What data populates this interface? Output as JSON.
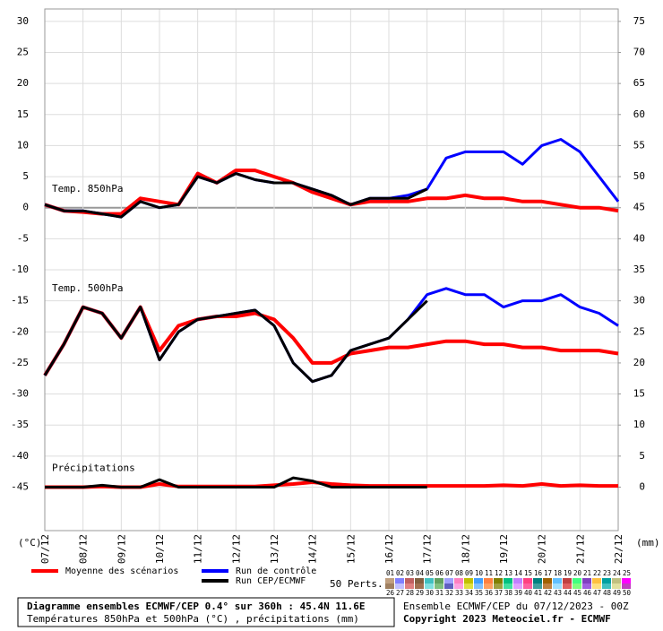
{
  "chart_data": {
    "type": "line",
    "annotations": [
      "Temp. 850hPa",
      "Temp. 500hPa",
      "Précipitations"
    ],
    "ylabel": "(°C)",
    "y2label": "(mm)",
    "x": [
      0,
      12,
      24,
      36,
      48,
      60,
      72,
      84,
      96,
      108,
      120,
      132,
      144,
      156,
      168,
      180,
      192,
      204,
      216,
      228,
      240,
      252,
      264,
      276,
      288,
      300,
      312,
      324,
      336,
      348,
      360
    ],
    "xlim": [
      0,
      360
    ],
    "xticks": [
      {
        "value": 0,
        "label": "07/12"
      },
      {
        "value": 24,
        "label": "08/12"
      },
      {
        "value": 48,
        "label": "09/12"
      },
      {
        "value": 72,
        "label": "10/12"
      },
      {
        "value": 96,
        "label": "11/12"
      },
      {
        "value": 120,
        "label": "12/12"
      },
      {
        "value": 144,
        "label": "13/12"
      },
      {
        "value": 168,
        "label": "14/12"
      },
      {
        "value": 192,
        "label": "15/12"
      },
      {
        "value": 216,
        "label": "16/12"
      },
      {
        "value": 240,
        "label": "17/12"
      },
      {
        "value": 264,
        "label": "18/12"
      },
      {
        "value": 288,
        "label": "19/12"
      },
      {
        "value": 312,
        "label": "20/12"
      },
      {
        "value": 336,
        "label": "21/12"
      },
      {
        "value": 360,
        "label": "22/12"
      }
    ],
    "ylim": [
      -52,
      32
    ],
    "yticks": [
      30,
      25,
      20,
      15,
      10,
      5,
      0,
      -5,
      -10,
      -15,
      -20,
      -25,
      -30,
      -35,
      -40,
      -45
    ],
    "y2lim": [
      -7,
      77
    ],
    "y2ticks": [
      75,
      70,
      65,
      60,
      55,
      50,
      45,
      40,
      35,
      30,
      25,
      20,
      15,
      10,
      5,
      0
    ],
    "grid": true,
    "series": [
      {
        "name": "Moyenne des scénarios",
        "color": "#ff0000",
        "width": 4,
        "values": [
          0.5,
          -0.5,
          -0.7,
          -1,
          -1,
          1.5,
          1,
          0.5,
          5.5,
          4,
          6,
          6,
          5,
          4,
          2.5,
          1.5,
          0.5,
          1,
          1,
          1,
          1.5,
          1.5,
          2,
          1.5,
          1.5,
          1,
          1,
          0.5,
          0,
          0,
          -0.5
        ]
      },
      {
        "name": "Run de contrôle",
        "color": "#0000ff",
        "width": 3,
        "values": [
          0.5,
          -0.5,
          -0.5,
          -1,
          -1.5,
          1,
          0,
          0.5,
          5,
          4,
          5.5,
          4.5,
          4,
          4,
          3,
          2,
          0.5,
          1.5,
          1.5,
          2,
          3,
          8,
          9,
          9,
          9,
          7,
          10,
          11,
          9,
          5,
          1
        ]
      },
      {
        "name": "Run CEP/ECMWF",
        "color": "#000000",
        "width": 3,
        "values": [
          0.5,
          -0.5,
          -0.5,
          -1,
          -1.5,
          1,
          0,
          0.5,
          5,
          4,
          5.5,
          4.5,
          4,
          4,
          3,
          2,
          0.5,
          1.5,
          1.5,
          1.5,
          3,
          null,
          null,
          null,
          null,
          null,
          null,
          null,
          null,
          null,
          null
        ]
      },
      {
        "color": "#ff0000",
        "width": 4,
        "values": [
          -27,
          -22,
          -16,
          -17,
          -21,
          -16,
          -23,
          -19,
          -18,
          -17.5,
          -17.5,
          -17,
          -18,
          -21,
          -25,
          -25,
          -23.5,
          -23,
          -22.5,
          -22.5,
          -22,
          -21.5,
          -21.5,
          -22,
          -22,
          -22.5,
          -22.5,
          -23,
          -23,
          -23,
          -23.5
        ]
      },
      {
        "color": "#0000ff",
        "width": 3,
        "values": [
          -27,
          -22,
          -16,
          -17,
          -21,
          -16,
          -24.5,
          -20,
          -18,
          -17.5,
          -17,
          -16.5,
          -19,
          -25,
          -28,
          -27,
          -23,
          -22,
          -21,
          -18,
          -14,
          -13,
          -14,
          -14,
          -16,
          -15,
          -15,
          -14,
          -16,
          -17,
          -19
        ]
      },
      {
        "color": "#000000",
        "width": 3,
        "values": [
          -27,
          -22,
          -16,
          -17,
          -21,
          -16,
          -24.5,
          -20,
          -18,
          -17.5,
          -17,
          -16.5,
          -19,
          -25,
          -28,
          -27,
          -23,
          -22,
          -21,
          -18,
          -15,
          null,
          null,
          null,
          null,
          null,
          null,
          null,
          null,
          null,
          null
        ]
      },
      {
        "color": "#ff0000",
        "width": 4,
        "axis": "y2",
        "values": [
          0,
          0,
          0,
          0.1,
          0,
          0,
          0.5,
          0.1,
          0.1,
          0.1,
          0.1,
          0.1,
          0.3,
          0.5,
          0.8,
          0.5,
          0.3,
          0.2,
          0.2,
          0.2,
          0.2,
          0.2,
          0.2,
          0.2,
          0.3,
          0.2,
          0.5,
          0.2,
          0.3,
          0.2,
          0.2
        ]
      },
      {
        "color": "#000000",
        "width": 3,
        "axis": "y2",
        "values": [
          0,
          0,
          0,
          0.3,
          0,
          0,
          1.2,
          0,
          0,
          0,
          0,
          0,
          0,
          1.5,
          1,
          0,
          0,
          0,
          0,
          0,
          0,
          null,
          null,
          null,
          null,
          null,
          null,
          null,
          null,
          null,
          null
        ]
      }
    ],
    "members": {
      "title": "50 Perts.",
      "labels": [
        "01",
        "02",
        "03",
        "04",
        "05",
        "06",
        "07",
        "08",
        "09",
        "10",
        "11",
        "12",
        "13",
        "14",
        "15",
        "16",
        "17",
        "18",
        "19",
        "20",
        "21",
        "22",
        "23",
        "24",
        "25",
        "26",
        "27",
        "28",
        "29",
        "30",
        "31",
        "32",
        "33",
        "34",
        "35",
        "36",
        "37",
        "38",
        "39",
        "40",
        "41",
        "42",
        "43",
        "44",
        "45",
        "46",
        "47",
        "48",
        "49",
        "50"
      ],
      "colors": [
        "#c0a080",
        "#8080ff",
        "#c06060",
        "#806040",
        "#40c0c0",
        "#60a060",
        "#a0a0ff",
        "#ff80c0",
        "#c0c000",
        "#40a0ff",
        "#ff8040",
        "#808000",
        "#00c080",
        "#c080ff",
        "#ff4080",
        "#008080",
        "#a06000",
        "#60c0ff",
        "#c04040",
        "#40ff80",
        "#8040c0",
        "#ffc040",
        "#00a0a0",
        "#c0c080",
        "#ff00ff",
        "#a08060",
        "#c0c0ff",
        "#e08080",
        "#a07050",
        "#80e0e0",
        "#80c080",
        "#6060c0",
        "#ffa0e0",
        "#e0e040",
        "#80c0ff",
        "#ffa060",
        "#a0a040",
        "#40e0a0",
        "#e0a0ff",
        "#ff60a0",
        "#40a0a0",
        "#c08040",
        "#a0e0ff",
        "#e06060",
        "#80ff80",
        "#a060e0",
        "#ffe080",
        "#40c0c0",
        "#e0e0a0",
        "#c040c0"
      ]
    },
    "footer": {
      "title": "Diagramme ensembles ECMWF/CEP 0.4° sur 360h : 45.4N 11.6E",
      "subtitle": "Températures 850hPa et 500hPa (°C) , précipitations (mm)",
      "run": "Ensemble ECMWF/CEP du 07/12/2023 - 00Z",
      "copyright": "Copyright 2023 Meteociel.fr - ECMWF"
    }
  }
}
